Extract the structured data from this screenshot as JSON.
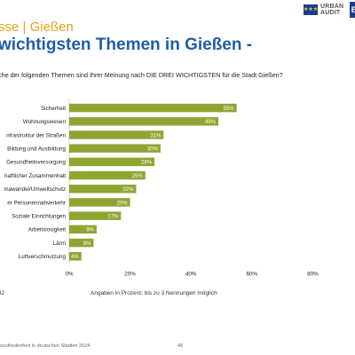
{
  "header": {
    "kicker": "sse | Gießen",
    "title": "wichtigsten Themen in Gießen -",
    "logo_text_1": "URBAN",
    "logo_text_2": "AUDIT",
    "logo_box": "B",
    "eu_flag_icon": "eu-flag-icon"
  },
  "question": "che der folgenden Themen sind Ihrer Meinung nach DIE DREI WICHTIGSTEN für die Stadt Gießen?",
  "notes": {
    "base": "32",
    "footnote": "Angaben in Prozent; bis zu 3 Nennungen möglich"
  },
  "footer": {
    "text": "szufriedenheit in deutschen Städten 2024",
    "page": "48"
  },
  "colors": {
    "bar": "#8ea631",
    "kicker": "#e6a317",
    "title": "#1f5ea8"
  },
  "chart_data": {
    "type": "bar",
    "orientation": "horizontal",
    "categories": [
      "Sicherheit",
      "Wohnungswesen",
      "nfrastruktur der Straßen",
      "Bildung und Ausbildung",
      "Gesundheitsversorgung",
      "haftlicher Zusammenhalt",
      "mawandel/Umweltschutz",
      "er Personennahverkehr",
      "Soziale Einrichtungen",
      "Arbeitslosigkeit",
      "Lärm",
      "Luftverschmutzung"
    ],
    "values": [
      55,
      49,
      31,
      30,
      28,
      25,
      22,
      20,
      17,
      9,
      8,
      4
    ],
    "value_labels": [
      "55%",
      "49%",
      "31%",
      "30%",
      "28%",
      "25%",
      "22%",
      "20%",
      "17%",
      "9%",
      "8%",
      "4%"
    ],
    "x_ticks": [
      0,
      20,
      40,
      60,
      80
    ],
    "x_tick_labels": [
      "0%",
      "20%",
      "40%",
      "60%",
      "80%"
    ],
    "xlim": [
      0,
      100
    ],
    "grid": false
  }
}
